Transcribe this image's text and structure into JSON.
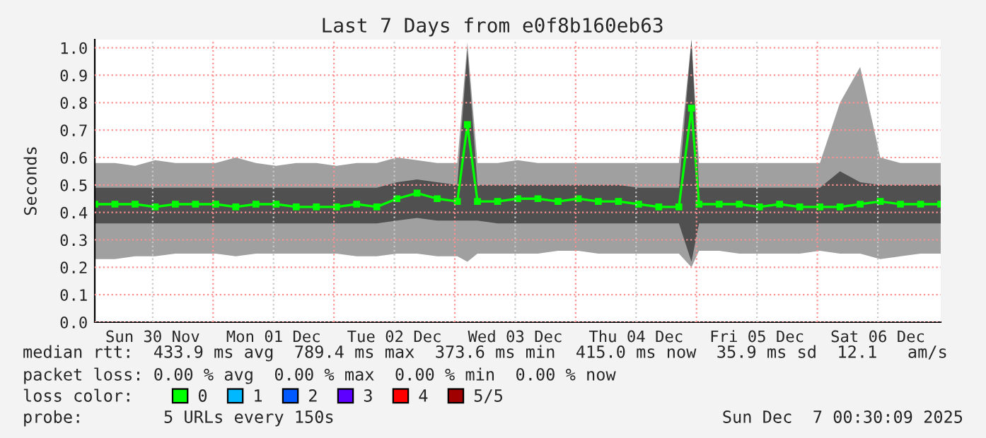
{
  "chart_data": {
    "type": "line",
    "title": "Last 7 Days from e0f8b160eb63",
    "ylabel": "Seconds",
    "legend_title": "loss color:",
    "x": [
      "2025-11-30T00:30",
      "2025-11-30T04:30",
      "2025-11-30T08:30",
      "2025-11-30T12:30",
      "2025-11-30T16:30",
      "2025-11-30T20:30",
      "2025-12-01T00:30",
      "2025-12-01T04:30",
      "2025-12-01T08:30",
      "2025-12-01T12:30",
      "2025-12-01T16:30",
      "2025-12-01T20:30",
      "2025-12-02T00:30",
      "2025-12-02T04:30",
      "2025-12-02T08:30",
      "2025-12-02T12:30",
      "2025-12-02T16:30",
      "2025-12-02T20:30",
      "2025-12-03T00:30",
      "2025-12-03T02:30",
      "2025-12-03T04:30",
      "2025-12-03T08:30",
      "2025-12-03T12:30",
      "2025-12-03T16:30",
      "2025-12-03T20:30",
      "2025-12-04T00:30",
      "2025-12-04T04:30",
      "2025-12-04T08:30",
      "2025-12-04T12:30",
      "2025-12-04T16:30",
      "2025-12-04T20:30",
      "2025-12-04T23:00",
      "2025-12-05T00:30",
      "2025-12-05T04:30",
      "2025-12-05T08:30",
      "2025-12-05T12:30",
      "2025-12-05T16:30",
      "2025-12-05T20:30",
      "2025-12-06T00:30",
      "2025-12-06T04:30",
      "2025-12-06T08:30",
      "2025-12-06T12:30",
      "2025-12-06T16:30",
      "2025-12-06T20:30",
      "2025-12-07T00:30"
    ],
    "series": [
      {
        "color": "#a0a0a0",
        "lower": [
          0.23,
          0.23,
          0.24,
          0.24,
          0.25,
          0.25,
          0.25,
          0.24,
          0.25,
          0.25,
          0.25,
          0.25,
          0.25,
          0.24,
          0.24,
          0.25,
          0.25,
          0.24,
          0.24,
          0.22,
          0.25,
          0.25,
          0.25,
          0.25,
          0.26,
          0.26,
          0.25,
          0.25,
          0.25,
          0.25,
          0.25,
          0.2,
          0.26,
          0.26,
          0.25,
          0.25,
          0.25,
          0.25,
          0.26,
          0.25,
          0.25,
          0.23,
          0.24,
          0.25,
          0.25
        ],
        "upper": [
          0.58,
          0.58,
          0.57,
          0.59,
          0.58,
          0.58,
          0.58,
          0.6,
          0.58,
          0.57,
          0.58,
          0.58,
          0.57,
          0.58,
          0.58,
          0.6,
          0.59,
          0.58,
          0.58,
          1.02,
          0.58,
          0.58,
          0.59,
          0.58,
          0.58,
          0.58,
          0.58,
          0.58,
          0.58,
          0.58,
          0.58,
          1.03,
          0.58,
          0.58,
          0.58,
          0.58,
          0.58,
          0.58,
          0.58,
          0.8,
          0.93,
          0.6,
          0.58,
          0.58,
          0.58
        ],
        "values": [
          null,
          null,
          null,
          null,
          null,
          null,
          null,
          null,
          null,
          null,
          null,
          null,
          null,
          null,
          null,
          null,
          null,
          null,
          null,
          null,
          null,
          null,
          null,
          null,
          null,
          null,
          null,
          null,
          null,
          null,
          null,
          null,
          null,
          null,
          null,
          null,
          null,
          null,
          null,
          null,
          null,
          null,
          null,
          null,
          null
        ]
      },
      {
        "color": "#505050",
        "lower": [
          0.36,
          0.36,
          0.36,
          0.36,
          0.36,
          0.36,
          0.36,
          0.36,
          0.36,
          0.36,
          0.36,
          0.36,
          0.36,
          0.36,
          0.36,
          0.37,
          0.38,
          0.37,
          0.37,
          0.37,
          0.37,
          0.36,
          0.36,
          0.36,
          0.36,
          0.36,
          0.36,
          0.36,
          0.36,
          0.36,
          0.36,
          0.22,
          0.36,
          0.36,
          0.36,
          0.36,
          0.36,
          0.36,
          0.36,
          0.36,
          0.36,
          0.36,
          0.36,
          0.36,
          0.36
        ],
        "upper": [
          0.49,
          0.49,
          0.49,
          0.49,
          0.49,
          0.49,
          0.49,
          0.49,
          0.49,
          0.49,
          0.49,
          0.49,
          0.49,
          0.49,
          0.49,
          0.51,
          0.52,
          0.51,
          0.5,
          0.99,
          0.5,
          0.5,
          0.5,
          0.5,
          0.5,
          0.5,
          0.5,
          0.5,
          0.49,
          0.49,
          0.49,
          1.03,
          0.49,
          0.49,
          0.49,
          0.49,
          0.49,
          0.49,
          0.49,
          0.55,
          0.51,
          0.5,
          0.5,
          0.5,
          0.5
        ],
        "values": [
          null,
          null,
          null,
          null,
          null,
          null,
          null,
          null,
          null,
          null,
          null,
          null,
          null,
          null,
          null,
          null,
          null,
          null,
          null,
          null,
          null,
          null,
          null,
          null,
          null,
          null,
          null,
          null,
          null,
          null,
          null,
          null,
          null,
          null,
          null,
          null,
          null,
          null,
          null,
          null,
          null,
          null,
          null,
          null,
          null
        ]
      },
      {
        "name": "0",
        "color": "#00ff00",
        "values": [
          0.43,
          0.43,
          0.43,
          0.42,
          0.43,
          0.43,
          0.43,
          0.42,
          0.43,
          0.43,
          0.42,
          0.42,
          0.42,
          0.43,
          0.42,
          0.45,
          0.47,
          0.45,
          0.44,
          0.72,
          0.44,
          0.44,
          0.45,
          0.45,
          0.44,
          0.45,
          0.44,
          0.44,
          0.43,
          0.42,
          0.42,
          0.78,
          0.43,
          0.43,
          0.43,
          0.42,
          0.43,
          0.42,
          0.42,
          0.42,
          0.43,
          0.44,
          0.43,
          0.43,
          0.43
        ]
      },
      {
        "name": "1",
        "color": "#00b8ff",
        "values": [
          null,
          null,
          null,
          null,
          null,
          null,
          null,
          null,
          null,
          null,
          null,
          null,
          null,
          null,
          null,
          null,
          null,
          null,
          null,
          null,
          null,
          null,
          null,
          null,
          null,
          null,
          null,
          null,
          null,
          null,
          null,
          null,
          null,
          null,
          null,
          null,
          null,
          null,
          null,
          null,
          null,
          null,
          null,
          null,
          null
        ]
      },
      {
        "name": "2",
        "color": "#0059ff",
        "values": [
          null,
          null,
          null,
          null,
          null,
          null,
          null,
          null,
          null,
          null,
          null,
          null,
          null,
          null,
          null,
          null,
          null,
          null,
          null,
          null,
          null,
          null,
          null,
          null,
          null,
          null,
          null,
          null,
          null,
          null,
          null,
          null,
          null,
          null,
          null,
          null,
          null,
          null,
          null,
          null,
          null,
          null,
          null,
          null,
          null
        ]
      },
      {
        "name": "3",
        "color": "#5e00ff",
        "values": [
          null,
          null,
          null,
          null,
          null,
          null,
          null,
          null,
          null,
          null,
          null,
          null,
          null,
          null,
          null,
          null,
          null,
          null,
          null,
          null,
          null,
          null,
          null,
          null,
          null,
          null,
          null,
          null,
          null,
          null,
          null,
          null,
          null,
          null,
          null,
          null,
          null,
          null,
          null,
          null,
          null,
          null,
          null,
          null,
          null
        ]
      },
      {
        "name": "4",
        "color": "#ff0000",
        "values": [
          null,
          null,
          null,
          null,
          null,
          null,
          null,
          null,
          null,
          null,
          null,
          null,
          null,
          null,
          null,
          null,
          null,
          null,
          null,
          null,
          null,
          null,
          null,
          null,
          null,
          null,
          null,
          null,
          null,
          null,
          null,
          null,
          null,
          null,
          null,
          null,
          null,
          null,
          null,
          null,
          null,
          null,
          null,
          null,
          null
        ]
      },
      {
        "name": "5/5",
        "color": "#a00000",
        "values": [
          null,
          null,
          null,
          null,
          null,
          null,
          null,
          null,
          null,
          null,
          null,
          null,
          null,
          null,
          null,
          null,
          null,
          null,
          null,
          null,
          null,
          null,
          null,
          null,
          null,
          null,
          null,
          null,
          null,
          null,
          null,
          null,
          null,
          null,
          null,
          null,
          null,
          null,
          null,
          null,
          null,
          null,
          null,
          null,
          null
        ]
      }
    ],
    "xlim": [
      "2025-11-30T00:30",
      "2025-12-07T00:30"
    ],
    "xticks": [
      {
        "value": "2025-11-30T12:00",
        "label": "Sun 30 Nov"
      },
      {
        "value": "2025-12-01T00:00",
        "label": null
      },
      {
        "value": "2025-12-01T12:00",
        "label": "Mon 01 Dec"
      },
      {
        "value": "2025-12-02T00:00",
        "label": null
      },
      {
        "value": "2025-12-02T12:00",
        "label": "Tue 02 Dec"
      },
      {
        "value": "2025-12-03T00:00",
        "label": null
      },
      {
        "value": "2025-12-03T12:00",
        "label": "Wed 03 Dec"
      },
      {
        "value": "2025-12-04T00:00",
        "label": null
      },
      {
        "value": "2025-12-04T12:00",
        "label": "Thu 04 Dec"
      },
      {
        "value": "2025-12-05T00:00",
        "label": null
      },
      {
        "value": "2025-12-05T12:00",
        "label": "Fri 05 Dec"
      },
      {
        "value": "2025-12-06T00:00",
        "label": null
      },
      {
        "value": "2025-12-06T12:00",
        "label": "Sat 06 Dec"
      }
    ],
    "ylim": [
      0,
      1.03
    ],
    "yticks": [
      {
        "value": 0,
        "label": "0.0"
      },
      {
        "value": 0.1,
        "label": "0.1"
      },
      {
        "value": 0.2,
        "label": "0.2"
      },
      {
        "value": 0.3,
        "label": "0.3"
      },
      {
        "value": 0.4,
        "label": "0.4"
      },
      {
        "value": 0.5,
        "label": "0.5"
      },
      {
        "value": 0.6,
        "label": "0.6"
      },
      {
        "value": 0.7,
        "label": "0.7"
      },
      {
        "value": 0.8,
        "label": "0.8"
      },
      {
        "value": 0.9,
        "label": "0.9"
      },
      {
        "value": 1.0,
        "label": "1.0"
      }
    ],
    "grid": true,
    "legend": "bottom",
    "marker": "square",
    "annotations": [
      "median rtt:  433.9 ms avg  789.4 ms max  373.6 ms min  415.0 ms now  35.9 ms sd  12.1   am/s",
      "packet loss: 0.00 % avg  0.00 % max  0.00 % min  0.00 % now",
      "probe:        5 URLs every 150s",
      "Sun Dec  7 00:30:09 2025"
    ]
  }
}
